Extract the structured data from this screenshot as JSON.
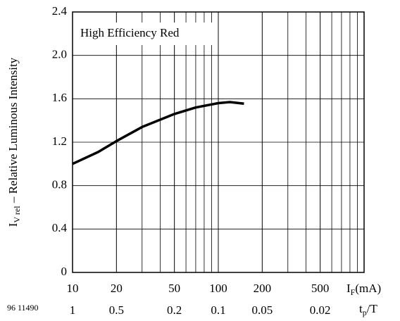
{
  "chart_data": {
    "type": "line",
    "annotation": "High Efficiency Red",
    "figure_code": "96 11490",
    "y_label": {
      "main": "I",
      "sub": "V rel",
      "rest": " – Relative Luminous Intensity"
    },
    "x_label": {
      "main": "I",
      "sub": "F",
      "rest": "(mA)"
    },
    "x2_label": {
      "main": "t",
      "sub": "p",
      "rest": "/T"
    },
    "x2_labels": [
      "1",
      "0.5",
      "0.2",
      "0.1",
      "0.05",
      "0.02"
    ],
    "xscale": "log",
    "xlim": [
      10,
      1000
    ],
    "xticks": [
      10,
      20,
      50,
      100,
      200,
      500
    ],
    "ylim": [
      0,
      2.4
    ],
    "yticks": [
      0,
      0.4,
      0.8,
      1.2,
      1.6,
      {
        "value": 2,
        "label": "2.0"
      },
      2.4
    ],
    "grid": true,
    "series": [
      {
        "color": "#000000",
        "x": [
          10,
          15,
          20,
          30,
          50,
          70,
          100,
          120,
          150
        ],
        "values": [
          1.0,
          1.11,
          1.21,
          1.34,
          1.46,
          1.52,
          1.56,
          1.57,
          1.555
        ]
      }
    ]
  }
}
